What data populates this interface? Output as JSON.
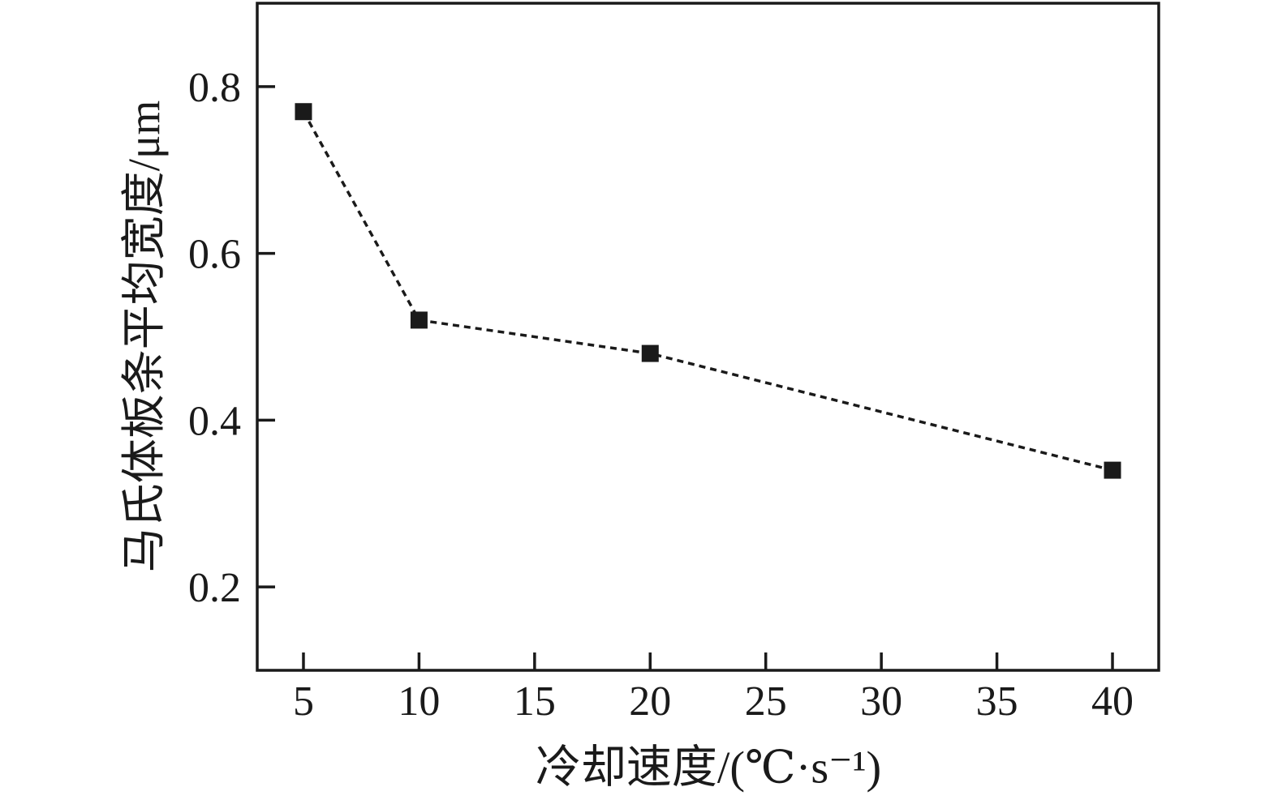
{
  "figure": {
    "background": "#ffffff",
    "ink_color": "#1a1a1a"
  },
  "chart_data": {
    "type": "line",
    "title": "",
    "xlabel": "冷却速度/(℃·s⁻¹)",
    "ylabel": "马氏体板条平均宽度/μm",
    "series": [
      {
        "name": "马氏体板条平均宽度",
        "x": [
          5,
          10,
          20,
          40
        ],
        "y": [
          0.77,
          0.52,
          0.48,
          0.34
        ]
      }
    ],
    "x_ticks": [
      5,
      10,
      15,
      20,
      25,
      30,
      35,
      40
    ],
    "x_tick_labels": [
      "5",
      "10",
      "15",
      "20",
      "25",
      "30",
      "35",
      "40"
    ],
    "y_ticks": [
      0.2,
      0.4,
      0.6,
      0.8
    ],
    "y_tick_labels": [
      "0.2",
      "0.4",
      "0.6",
      "0.8"
    ],
    "xlim": [
      3,
      42
    ],
    "ylim": [
      0.1,
      0.9
    ],
    "grid": false,
    "legend_position": "none",
    "marker": "filled-square",
    "marker_size_px": 21,
    "line_style": "dashed",
    "line_color": "#1a1a1a",
    "marker_color": "#1a1a1a"
  }
}
